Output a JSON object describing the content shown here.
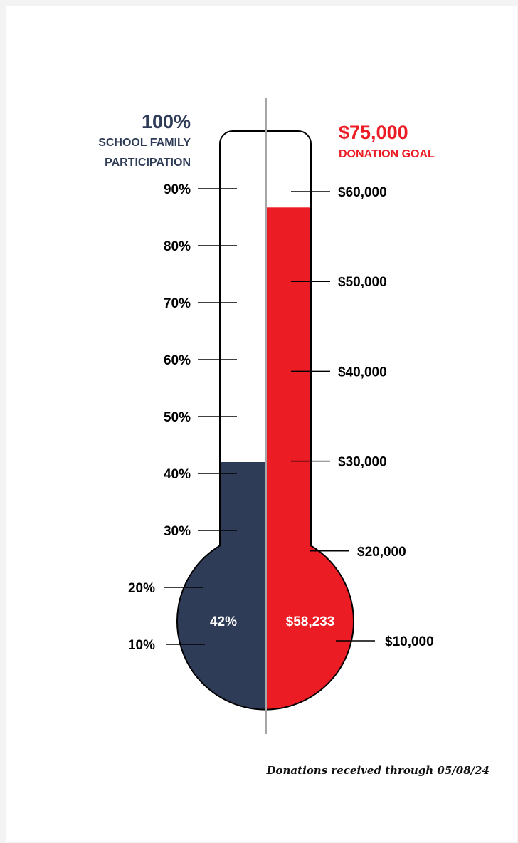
{
  "colors": {
    "participation": "#2f3c58",
    "donation": "#ec1c24",
    "outline": "#000000",
    "divider": "#a6a6a6"
  },
  "left_header": {
    "value": "100%",
    "line1": "SCHOOL FAMILY",
    "line2": "PARTICIPATION"
  },
  "right_header": {
    "value": "$75,000",
    "line1": "DONATION GOAL"
  },
  "footnote": "Donations received through 05/08/24",
  "chart_data": [
    {
      "type": "thermometer",
      "name": "participation",
      "value": 42,
      "value_label": "42%",
      "ticks": [
        {
          "value": 10,
          "label": "10%"
        },
        {
          "value": 20,
          "label": "20%"
        },
        {
          "value": 30,
          "label": "30%"
        },
        {
          "value": 40,
          "label": "40%"
        },
        {
          "value": 50,
          "label": "50%"
        },
        {
          "value": 60,
          "label": "60%"
        },
        {
          "value": 70,
          "label": "70%"
        },
        {
          "value": 80,
          "label": "80%"
        },
        {
          "value": 90,
          "label": "90%"
        }
      ],
      "goal": 100,
      "goal_label": "100%"
    },
    {
      "type": "thermometer",
      "name": "donations",
      "value": 58233,
      "value_label": "$58,233",
      "ticks": [
        {
          "value": 10000,
          "label": "$10,000"
        },
        {
          "value": 20000,
          "label": "$20,000"
        },
        {
          "value": 30000,
          "label": "$30,000"
        },
        {
          "value": 40000,
          "label": "$40,000"
        },
        {
          "value": 50000,
          "label": "$50,000"
        },
        {
          "value": 60000,
          "label": "$60,000"
        }
      ],
      "goal": 75000,
      "goal_label": "$75,000"
    }
  ]
}
